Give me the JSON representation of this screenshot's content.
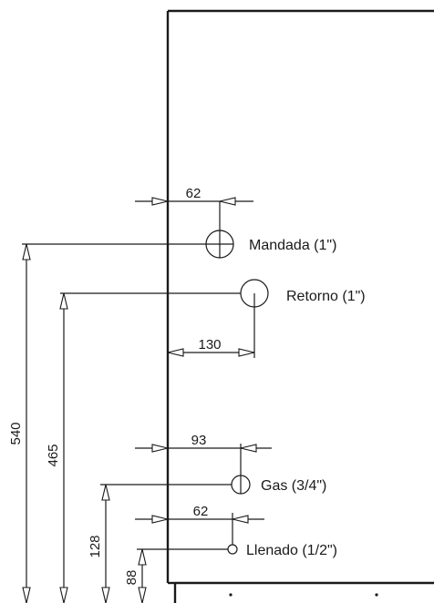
{
  "connections": [
    {
      "label": "Mandada (1\")"
    },
    {
      "label": "Retorno (1\")"
    },
    {
      "label": "Gas (3/4\")"
    },
    {
      "label": "Llenado (1/2\")"
    }
  ],
  "horizontal_dims": [
    "62",
    "130",
    "93",
    "62"
  ],
  "vertical_dims": [
    "540",
    "465",
    "128",
    "88"
  ]
}
